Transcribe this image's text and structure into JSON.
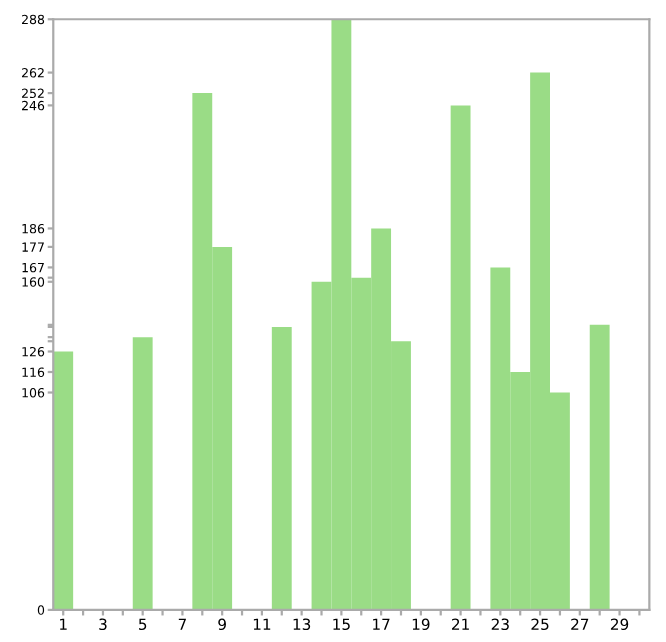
{
  "chart_data": {
    "type": "bar",
    "categories": [
      "1",
      null,
      "3",
      null,
      "5",
      null,
      "7",
      null,
      "9",
      null,
      "11",
      null,
      "13",
      null,
      "15",
      null,
      "17",
      null,
      "19",
      null,
      "21",
      null,
      "23",
      null,
      "25",
      null,
      "27",
      null,
      "29",
      null
    ],
    "values": [
      126,
      0,
      0,
      0,
      133,
      0,
      0,
      252,
      177,
      0,
      0,
      138,
      0,
      160,
      288,
      162,
      186,
      131,
      0,
      0,
      246,
      0,
      167,
      116,
      262,
      106,
      0,
      139,
      0,
      0
    ],
    "color": "#9adc86",
    "ylim": [
      0,
      288
    ],
    "yticks": [
      0,
      106,
      116,
      126,
      {
        "value": 131,
        "label": null
      },
      {
        "value": 133,
        "label": null
      },
      {
        "value": 138,
        "label": null
      },
      {
        "value": 139,
        "label": null
      },
      160,
      {
        "value": 162,
        "label": null
      },
      167,
      177,
      186,
      246,
      252,
      262,
      288
    ],
    "grid": false
  }
}
